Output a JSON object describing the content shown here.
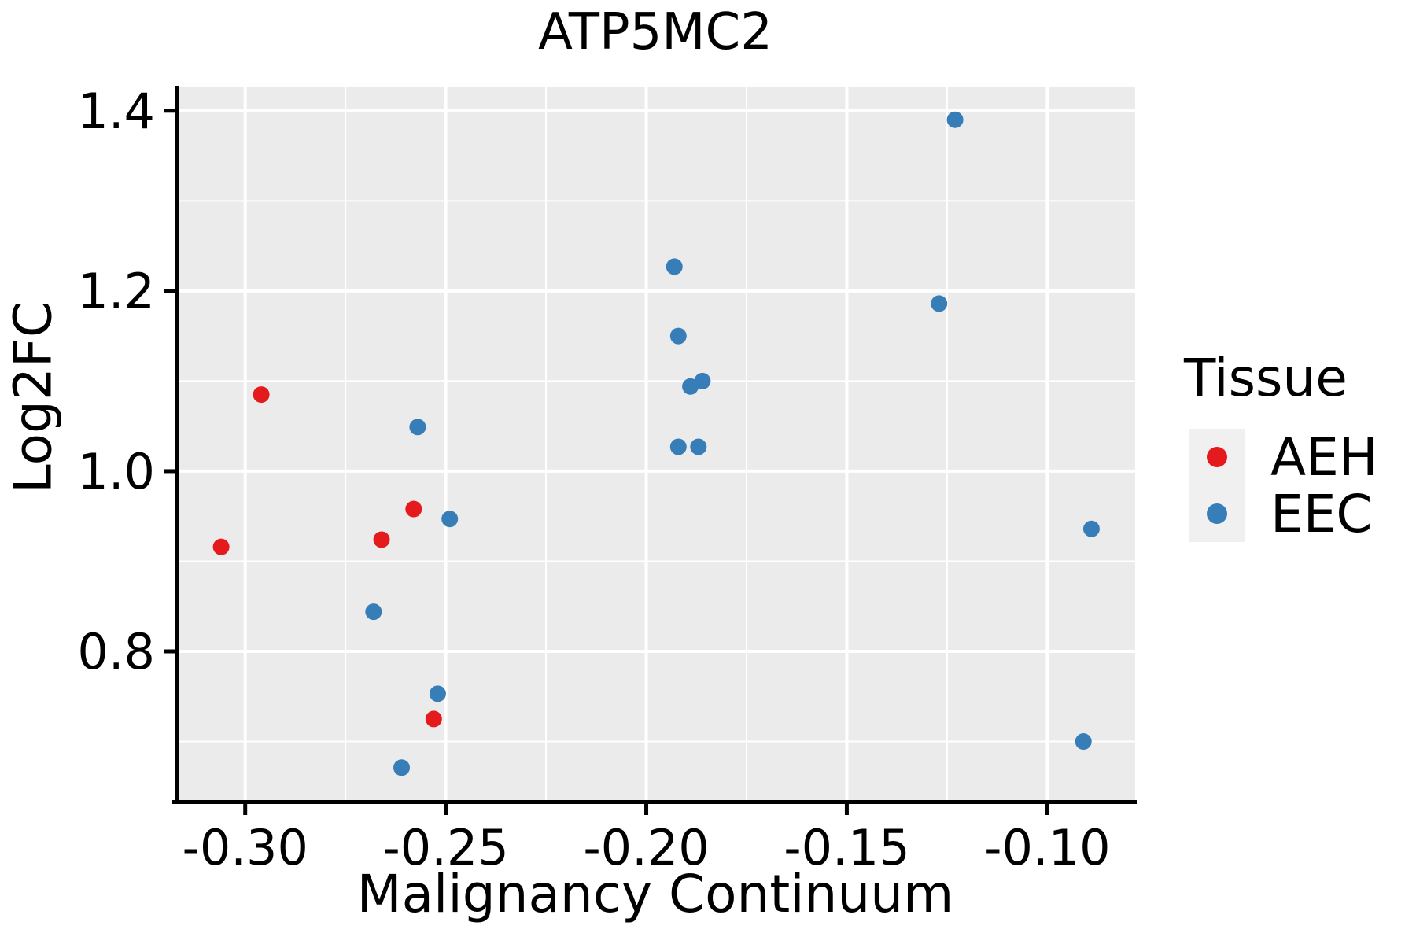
{
  "chart_data": {
    "type": "scatter",
    "title": "ATP5MC2",
    "xlabel": "Malignancy Continuum",
    "ylabel": "Log2FC",
    "xlim": [
      -0.3174,
      -0.0781
    ],
    "ylim": [
      0.635,
      1.426
    ],
    "x_ticks": {
      "values": [
        -0.3,
        -0.25,
        -0.2,
        -0.15,
        -0.1
      ],
      "labels": [
        "-0.30",
        "-0.25",
        "-0.20",
        "-0.15",
        "-0.10"
      ],
      "minor": [
        -0.275,
        -0.225,
        -0.175,
        -0.125
      ]
    },
    "y_ticks": {
      "values": [
        0.8,
        1.0,
        1.2,
        1.4
      ],
      "labels": [
        "0.8",
        "1.0",
        "1.2",
        "1.4"
      ],
      "minor": [
        0.7,
        0.9,
        1.1,
        1.3
      ]
    },
    "grid": "white major and minor gridlines on gray panel",
    "legend_position": "right",
    "series": [
      {
        "name": "AEH",
        "color": "#E41A1C",
        "points": [
          [
            -0.296,
            1.085
          ],
          [
            -0.306,
            0.916
          ],
          [
            -0.266,
            0.924
          ],
          [
            -0.258,
            0.958
          ],
          [
            -0.253,
            0.725
          ]
        ]
      },
      {
        "name": "EEC",
        "color": "#377EB8",
        "points": [
          [
            -0.257,
            1.049
          ],
          [
            -0.249,
            0.947
          ],
          [
            -0.268,
            0.844
          ],
          [
            -0.252,
            0.753
          ],
          [
            -0.261,
            0.671
          ],
          [
            -0.193,
            1.227
          ],
          [
            -0.192,
            1.15
          ],
          [
            -0.189,
            1.094
          ],
          [
            -0.186,
            1.1
          ],
          [
            -0.192,
            1.027
          ],
          [
            -0.187,
            1.027
          ],
          [
            -0.123,
            1.39
          ],
          [
            -0.127,
            1.186
          ],
          [
            -0.089,
            0.936
          ],
          [
            -0.091,
            0.7
          ]
        ]
      }
    ]
  },
  "legend": {
    "title": "Tissue",
    "entries": [
      {
        "label": "AEH",
        "color": "#E41A1C"
      },
      {
        "label": "EEC",
        "color": "#377EB8"
      }
    ]
  },
  "colors": {
    "panel_bg": "#EBEBEB",
    "grid": "#FFFFFF",
    "axis": "#000000",
    "text": "#000000",
    "legend_key_bg": "#F0F0F0",
    "aeh": "#E41A1C",
    "eec": "#377EB8"
  }
}
